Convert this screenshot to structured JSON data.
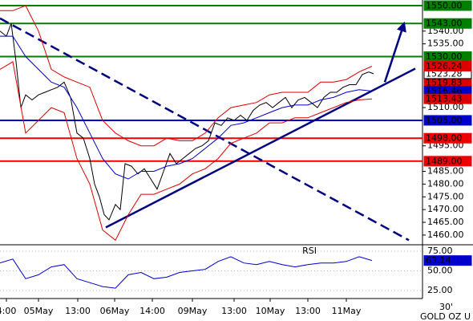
{
  "chart_data": {
    "type": "line",
    "xlim": [
      0,
      131.75
    ],
    "ylim": [
      1456.2,
      1552.2
    ],
    "yticks": [
      {
        "value": 1540,
        "label": "1540.00"
      },
      {
        "value": 1535,
        "label": "1535.00"
      },
      {
        "value": 1510,
        "label": "1510.00"
      },
      {
        "value": 1495,
        "label": "1495.00"
      },
      {
        "value": 1485,
        "label": "1485.00"
      },
      {
        "value": 1480,
        "label": "1480.00"
      },
      {
        "value": 1475,
        "label": "1475.00"
      },
      {
        "value": 1470,
        "label": "1470.00"
      },
      {
        "value": 1465,
        "label": "1465.00"
      },
      {
        "value": 1460,
        "label": "1460.00"
      }
    ],
    "xticks": [
      {
        "value": 2,
        "label": "4:00"
      },
      {
        "value": 12,
        "label": "05May"
      },
      {
        "value": 24.25,
        "label": "13:00"
      },
      {
        "value": 35.75,
        "label": "06May"
      },
      {
        "value": 47.5,
        "label": "14:00"
      },
      {
        "value": 60,
        "label": "09May"
      },
      {
        "value": 73,
        "label": "13:00"
      },
      {
        "value": 84.25,
        "label": "10May"
      },
      {
        "value": 96,
        "label": "13:00"
      },
      {
        "value": 108,
        "label": "11May"
      }
    ],
    "series": [
      {
        "color": "#000000",
        "box": "#ffffff",
        "x": [
          0,
          2,
          3.5,
          5,
          6.5,
          8,
          10,
          12,
          14,
          16,
          18,
          20,
          22,
          24,
          26,
          28,
          29.5,
          31,
          32.5,
          34,
          36,
          37.5,
          39,
          41,
          43,
          45,
          47,
          49,
          51,
          53,
          55,
          57,
          59,
          61,
          63,
          65,
          67,
          69,
          71,
          73,
          75,
          77,
          79,
          81,
          83,
          85,
          87,
          89,
          91,
          93,
          95,
          97,
          99,
          101,
          103,
          105,
          107,
          109,
          111,
          113,
          115,
          116.5
        ],
        "values": [
          1540,
          1538,
          1543,
          1528,
          1510,
          1515,
          1513,
          1515,
          1516,
          1517,
          1518,
          1520,
          1514,
          1500,
          1498,
          1490,
          1480,
          1475,
          1468,
          1466,
          1472,
          1470,
          1488,
          1487,
          1484,
          1486,
          1482,
          1478,
          1485,
          1492,
          1488,
          1490,
          1492,
          1494,
          1495,
          1497,
          1504,
          1503,
          1506,
          1505,
          1507,
          1505,
          1509,
          1511,
          1512,
          1510,
          1512,
          1514,
          1510,
          1513,
          1514,
          1512,
          1510,
          1514,
          1516,
          1516,
          1518,
          1519,
          1519,
          1523,
          1524,
          1523.28
        ]
      },
      {
        "color": "#dd0000",
        "x": [
          0,
          4,
          8,
          12,
          16,
          20,
          24,
          28,
          32,
          36,
          40,
          44,
          48,
          52,
          56,
          60,
          64,
          68,
          72,
          76,
          80,
          84,
          88,
          92,
          96,
          100,
          104,
          108,
          112,
          116
        ],
        "values": [
          1548,
          1548,
          1550,
          1540,
          1525,
          1522,
          1520,
          1518,
          1505,
          1500,
          1497,
          1495,
          1495,
          1498,
          1497,
          1497,
          1500,
          1506,
          1510,
          1511,
          1512,
          1515,
          1516,
          1516,
          1516,
          1520,
          1520,
          1521,
          1524,
          1526.24
        ]
      },
      {
        "color": "#0000cc",
        "x": [
          0,
          4,
          8,
          12,
          16,
          20,
          24,
          28,
          32,
          36,
          40,
          44,
          48,
          52,
          56,
          60,
          64,
          68,
          72,
          76,
          80,
          84,
          88,
          92,
          96,
          100,
          104,
          108,
          112,
          116
        ],
        "values": [
          1538,
          1538,
          1530,
          1525,
          1520,
          1518,
          1510,
          1500,
          1490,
          1484,
          1482,
          1485,
          1485,
          1487,
          1488,
          1490,
          1494,
          1498,
          1503,
          1504,
          1506,
          1508,
          1510,
          1511,
          1511,
          1513,
          1514,
          1516,
          1517,
          1516.46
        ]
      },
      {
        "color": "#dd0000",
        "x": [
          0,
          4,
          8,
          12,
          16,
          20,
          24,
          28,
          32,
          36,
          40,
          44,
          48,
          52,
          56,
          60,
          64,
          68,
          72,
          76,
          80,
          84,
          88,
          92,
          96,
          100,
          104,
          108,
          112,
          116
        ],
        "values": [
          1525,
          1528,
          1500,
          1505,
          1510,
          1508,
          1490,
          1480,
          1462,
          1458,
          1468,
          1476,
          1476,
          1478,
          1480,
          1484,
          1486,
          1490,
          1496,
          1498,
          1500,
          1504,
          1504,
          1506,
          1506,
          1508,
          1510,
          1512,
          1513,
          1513.43
        ]
      }
    ],
    "markers": [
      {
        "value": 1519.83,
        "color": "#dd0000"
      }
    ],
    "levels": [
      {
        "value": 1550,
        "label": "1550.00",
        "color": "#007f00"
      },
      {
        "value": 1543,
        "label": "1543.00",
        "color": "#007f00"
      },
      {
        "value": 1530,
        "label": "1530.00",
        "color": "#007f00"
      },
      {
        "value": 1505,
        "label": "1505.00",
        "color": "#0000cc"
      },
      {
        "value": 1498,
        "label": "1498.00",
        "color": "#ee0000"
      },
      {
        "value": 1489,
        "label": "1489.00",
        "color": "#ee0000"
      }
    ],
    "trendlines": [
      {
        "x": [
          0,
          127.5
        ],
        "y": [
          1545,
          1458
        ],
        "color": "#000080",
        "dashed": true
      },
      {
        "x": [
          33,
          129.5
        ],
        "y": [
          1463,
          1525.3
        ],
        "color": "#000080",
        "dashed": false
      },
      {
        "x": [
          120,
          126
        ],
        "y": [
          1520,
          1543
        ],
        "color": "#000080",
        "dashed": false,
        "arrow": true
      }
    ],
    "rsi": {
      "title": "RSI",
      "ylim": [
        14.8,
        83.2
      ],
      "yticks": [
        {
          "value": 75,
          "label": "75.00"
        },
        {
          "value": 50,
          "label": "50.00"
        },
        {
          "value": 25,
          "label": "25.00"
        }
      ],
      "color": "#0000cc",
      "x": [
        0,
        4,
        8,
        12,
        16,
        20,
        24,
        28,
        32,
        36,
        40,
        44,
        48,
        52,
        56,
        60,
        64,
        68,
        72,
        76,
        80,
        84,
        88,
        92,
        96,
        100,
        104,
        108,
        112,
        116
      ],
      "values": [
        60,
        65,
        40,
        45,
        55,
        58,
        40,
        35,
        30,
        28,
        45,
        48,
        40,
        42,
        48,
        50,
        52,
        62,
        68,
        60,
        58,
        62,
        58,
        55,
        58,
        60,
        60,
        62,
        68,
        63.14
      ]
    },
    "footer": [
      "30'",
      "GOLD OZ U"
    ]
  }
}
